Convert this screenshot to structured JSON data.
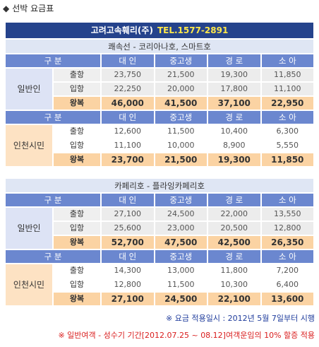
{
  "page_title": {
    "glyph": "◆",
    "text": "선박 요금표"
  },
  "banner": {
    "company": "고려고속훼리(주)",
    "tel": "TEL.1577-2891"
  },
  "headers": [
    "구 분",
    "대 인",
    "중고생",
    "경 로",
    "소 아"
  ],
  "trip_labels": [
    "출항",
    "입항",
    "왕복"
  ],
  "groups": {
    "general": "일반인",
    "incheon": "인천시민"
  },
  "sections": [
    {
      "route": "쾌속선 - 코리아나호, 스마트호",
      "general": [
        [
          "23,750",
          "21,500",
          "19,300",
          "11,850"
        ],
        [
          "22,250",
          "20,000",
          "17,800",
          "11,100"
        ],
        [
          "46,000",
          "41,500",
          "37,100",
          "22,950"
        ]
      ],
      "incheon": [
        [
          "12,600",
          "11,500",
          "10,400",
          "6,300"
        ],
        [
          "11,100",
          "10,000",
          "8,900",
          "5,550"
        ],
        [
          "23,700",
          "21,500",
          "19,300",
          "11,850"
        ]
      ]
    },
    {
      "route": "카페리호 - 플라잉카페리호",
      "general": [
        [
          "27,100",
          "24,500",
          "22,000",
          "13,550"
        ],
        [
          "25,600",
          "23,000",
          "20,500",
          "12,800"
        ],
        [
          "52,700",
          "47,500",
          "42,500",
          "26,350"
        ]
      ],
      "incheon": [
        [
          "14,300",
          "13,000",
          "11,800",
          "7,200"
        ],
        [
          "12,800",
          "11,500",
          "10,300",
          "6,400"
        ],
        [
          "27,100",
          "24,500",
          "22,100",
          "13,600"
        ]
      ]
    }
  ],
  "notes": {
    "effective_date": "※ 요금 적용일시 : 2012년 5월 7일부터 시행",
    "surcharge": "※ 일반여객 - 성수기 기간[2012.07.25 ~ 08.12]여객운임의 10% 할증 적용"
  },
  "colors": {
    "banner_bg": "#25438c",
    "tel_text": "#ffe84a",
    "header_blue": "#6b87cf",
    "header_orange": "#f2a33f",
    "roundtrip_bg": "#fbd3a3",
    "note_blue": "#1f3c9c",
    "note_red": "#d91c1c"
  }
}
